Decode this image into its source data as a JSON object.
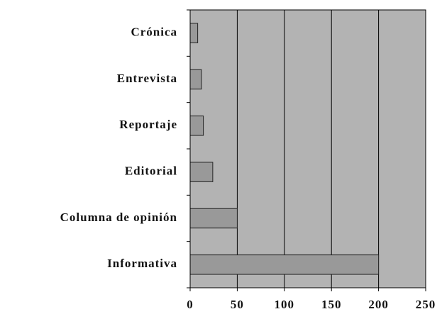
{
  "chart_data": {
    "type": "hbar",
    "categories": [
      "Crónica",
      "Entrevista",
      "Reportaje",
      "Editorial",
      "Columna de opinión",
      "Informativa"
    ],
    "values": [
      8,
      12,
      14,
      24,
      50,
      200
    ],
    "color": "#999999",
    "background": "#b3b3b3",
    "xlim": [
      0,
      250
    ],
    "xticks": [
      0,
      50,
      100,
      150,
      200,
      250
    ],
    "grid": true
  }
}
